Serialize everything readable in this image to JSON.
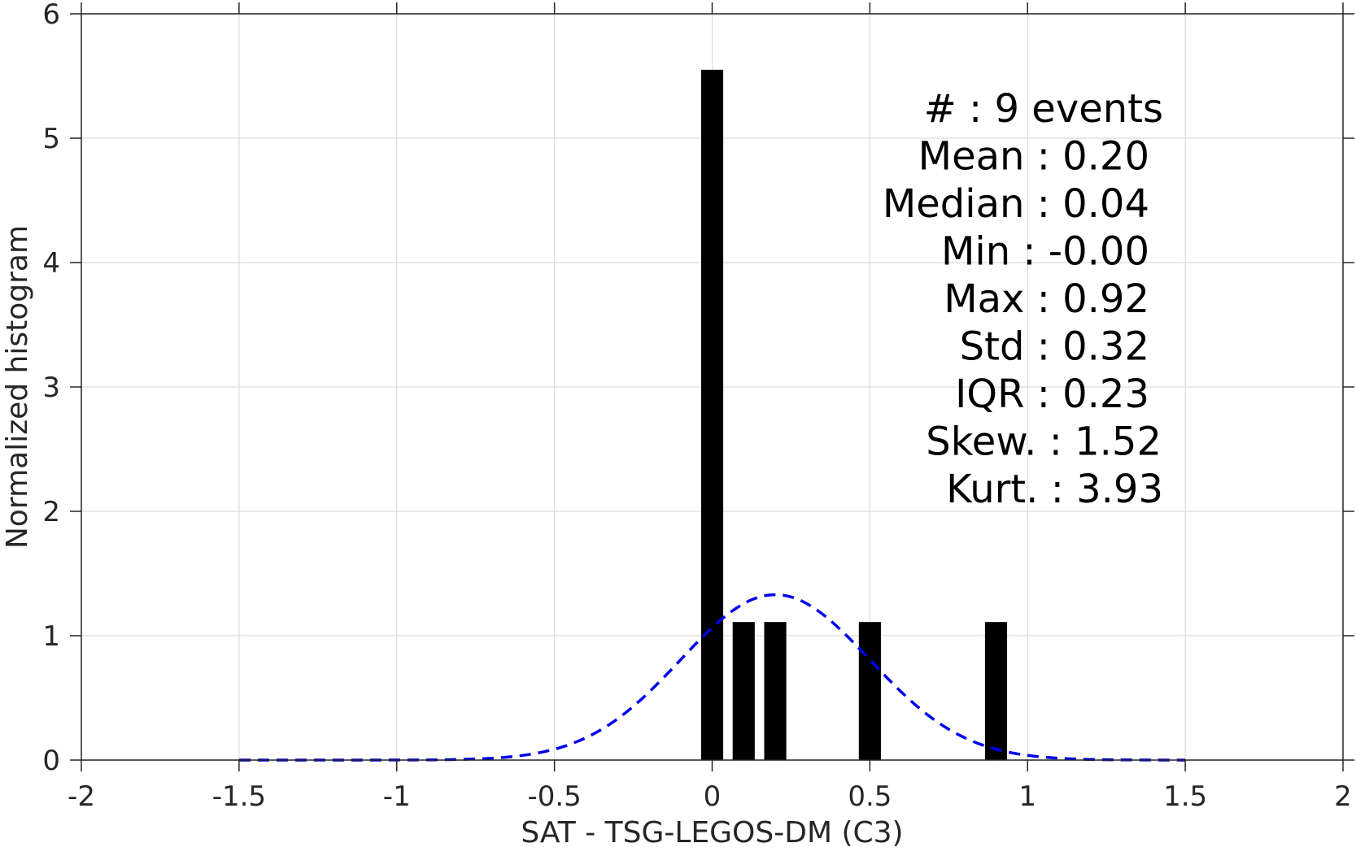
{
  "chart_data": {
    "type": "bar",
    "title": "",
    "xlabel": "SAT - TSG-LEGOS-DM (C3)",
    "ylabel": "Normalized histogram",
    "xlim": [
      -2,
      2
    ],
    "ylim": [
      0,
      6
    ],
    "grid": true,
    "x_ticks": [
      -2,
      -1.5,
      -1,
      -0.5,
      0,
      0.5,
      1,
      1.5,
      2
    ],
    "x_tick_labels": [
      "-2",
      "-1.5",
      "-1",
      "-0.5",
      "0",
      "0.5",
      "1",
      "1.5",
      "2"
    ],
    "y_ticks": [
      0,
      1,
      2,
      3,
      4,
      5,
      6
    ],
    "y_tick_labels": [
      "0",
      "1",
      "2",
      "3",
      "4",
      "5",
      "6"
    ],
    "bar_width": 0.07,
    "bars": [
      {
        "x": 0.0,
        "value": 5.55
      },
      {
        "x": 0.1,
        "value": 1.11
      },
      {
        "x": 0.2,
        "value": 1.11
      },
      {
        "x": 0.5,
        "value": 1.11
      },
      {
        "x": 0.9,
        "value": 1.11
      }
    ],
    "bar_color": "#000000",
    "fit_curve": {
      "style": "dashed",
      "color": "#0000ee",
      "mean": 0.2,
      "std": 0.3,
      "x_range": [
        -1.5,
        1.5
      ]
    },
    "stats_text": [
      "#  : 9 events",
      "Mean : 0.20",
      "Median : 0.04",
      "Min : -0.00",
      "Max : 0.92",
      "Std : 0.32",
      "IQR : 0.23",
      "Skew. : 1.52",
      "Kurt. : 3.93"
    ]
  }
}
